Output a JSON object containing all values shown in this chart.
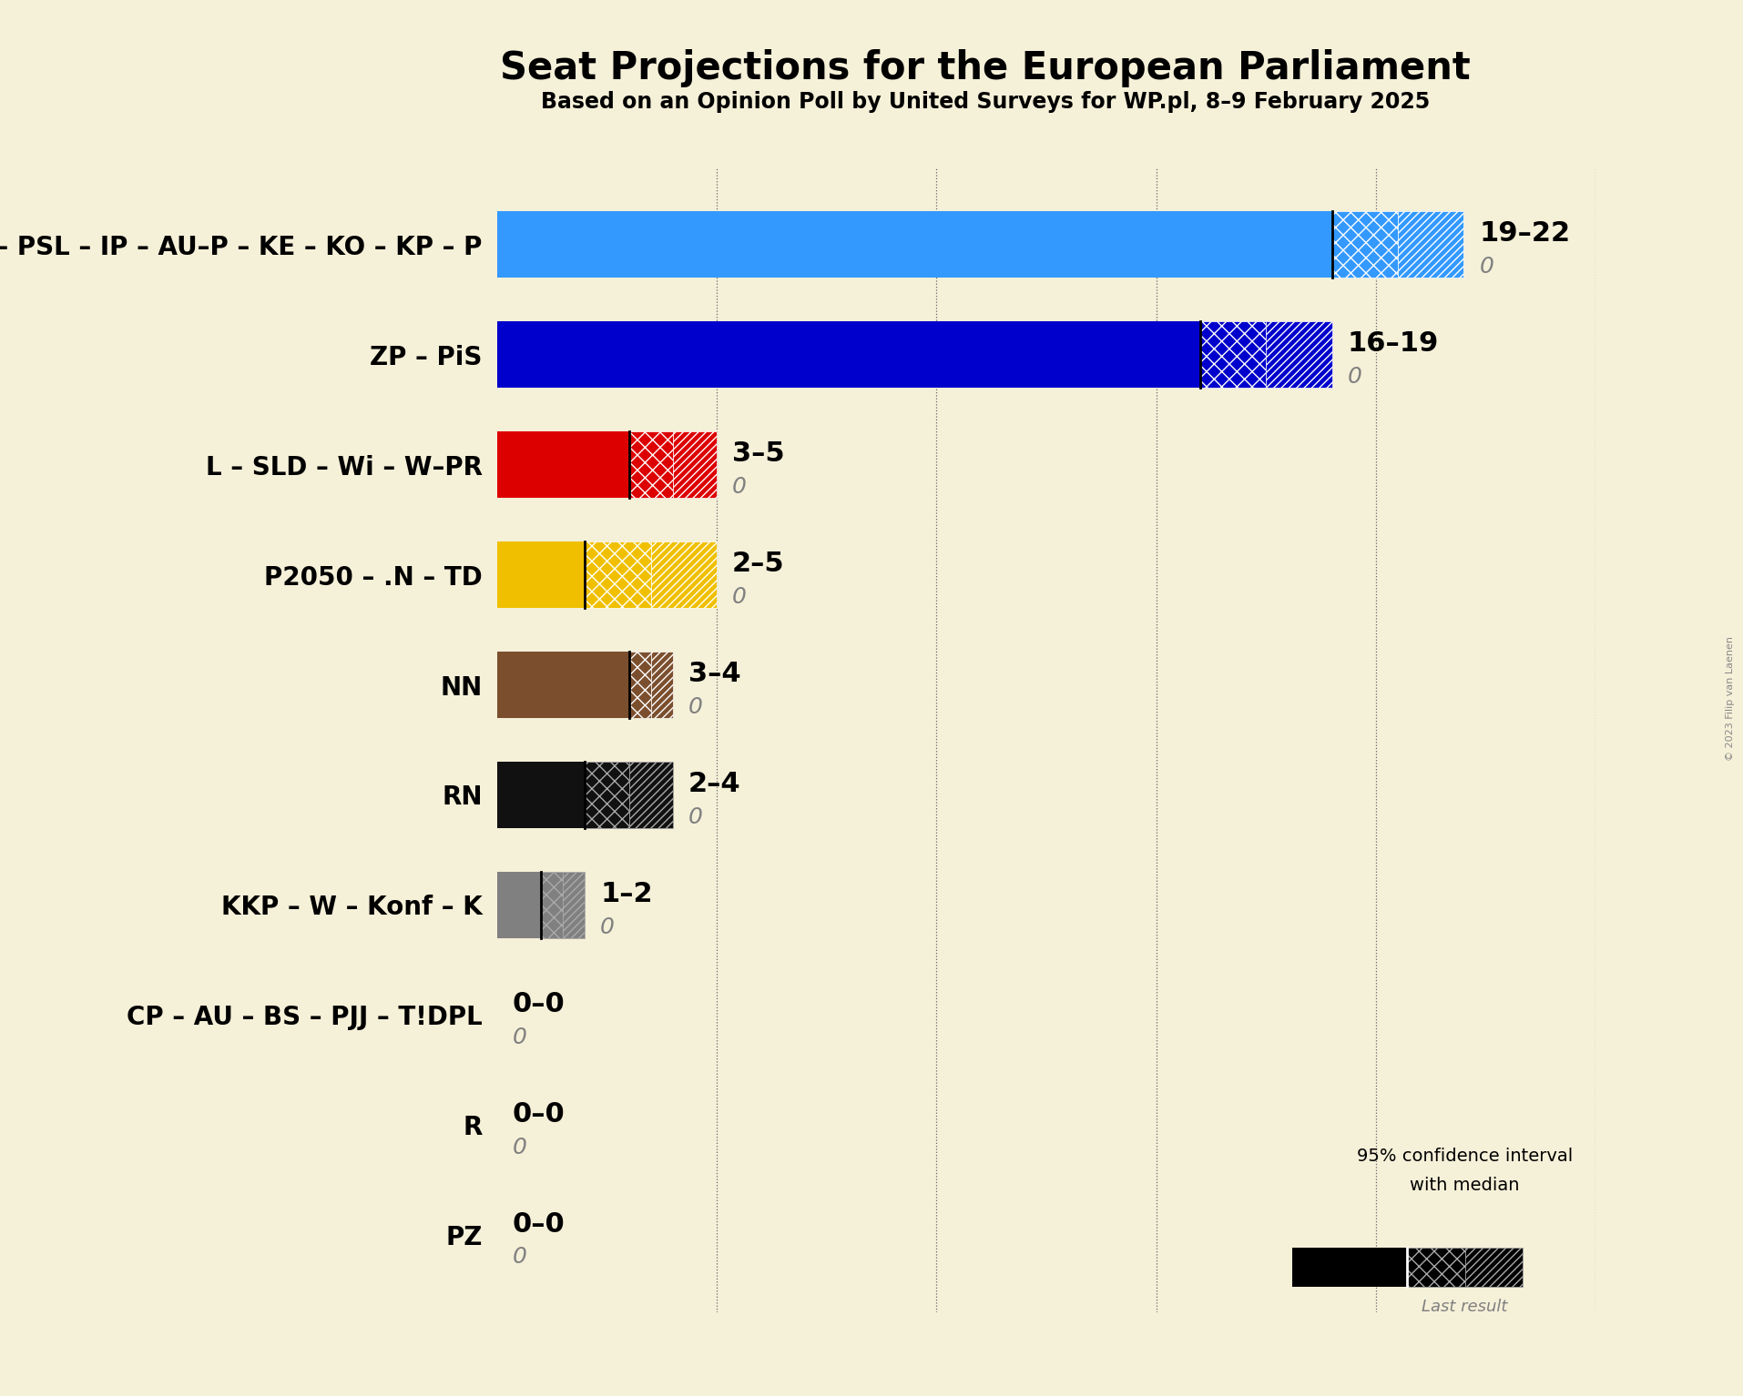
{
  "title": "Seat Projections for the European Parliament",
  "subtitle": "Based on an Opinion Poll by United Surveys for WP.pl, 8–9 February 2025",
  "copyright": "© 2023 Filip van Laenen",
  "background_color": "#f5f0d8",
  "parties": [
    "PO – PSL – IP – AU–P – KE – KO – KP – P",
    "ZP – PiS",
    "L – SLD – Wi – W–PR",
    "P2050 – .N – TD",
    "NN",
    "RN",
    "KKP – W – Konf – K",
    "CP – AU – BS – PJJ – T!DPL",
    "R",
    "PZ"
  ],
  "min_seats": [
    19,
    16,
    3,
    2,
    3,
    2,
    1,
    0,
    0,
    0
  ],
  "median_seats": [
    19,
    16,
    3,
    2,
    3,
    2,
    1,
    0,
    0,
    0
  ],
  "max_seats": [
    22,
    19,
    5,
    5,
    4,
    4,
    2,
    0,
    0,
    0
  ],
  "last_results": [
    0,
    0,
    0,
    0,
    0,
    0,
    0,
    0,
    0,
    0
  ],
  "labels": [
    "19–22",
    "16–19",
    "3–5",
    "2–5",
    "3–4",
    "2–4",
    "1–2",
    "0–0",
    "0–0",
    "0–0"
  ],
  "colors": [
    "#3399ff",
    "#0000cc",
    "#dd0000",
    "#f0c000",
    "#7b4f2e",
    "#111111",
    "#808080",
    "#808080",
    "#808080",
    "#808080"
  ],
  "xlim_max": 25,
  "gridlines": [
    5,
    10,
    15,
    20,
    25
  ],
  "bar_height": 0.6,
  "label_fontsize": 22,
  "tick_fontsize": 20,
  "title_fontsize": 30,
  "subtitle_fontsize": 17
}
